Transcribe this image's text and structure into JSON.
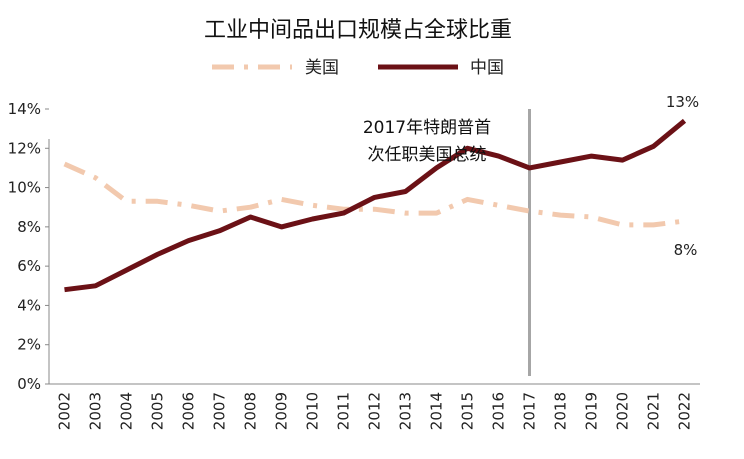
{
  "chart_data": {
    "type": "line",
    "title": "工业中间品出口规模占全球比重",
    "xlabel": "",
    "ylabel": "",
    "categories": [
      "2002",
      "2003",
      "2004",
      "2005",
      "2006",
      "2007",
      "2008",
      "2009",
      "2010",
      "2011",
      "2012",
      "2013",
      "2014",
      "2015",
      "2016",
      "2017",
      "2018",
      "2019",
      "2020",
      "2021",
      "2022"
    ],
    "ylim": [
      0,
      14
    ],
    "yticks": [
      0,
      2,
      4,
      6,
      8,
      10,
      12,
      14
    ],
    "yticklabels": [
      "0%",
      "2%",
      "4%",
      "6%",
      "8%",
      "10%",
      "12%",
      "14%"
    ],
    "series": [
      {
        "name": "美国",
        "color": "#f2c9ae",
        "style": "dashdot",
        "values": [
          11.2,
          10.5,
          9.3,
          9.3,
          9.1,
          8.8,
          9.0,
          9.4,
          9.1,
          8.9,
          8.9,
          8.7,
          8.7,
          9.4,
          9.1,
          8.8,
          8.6,
          8.5,
          8.1,
          8.1,
          8.3
        ]
      },
      {
        "name": "中国",
        "color": "#6b1116",
        "style": "solid",
        "values": [
          4.8,
          5.0,
          5.8,
          6.6,
          7.3,
          7.8,
          8.5,
          8.0,
          8.4,
          8.7,
          9.5,
          9.8,
          11.0,
          12.0,
          11.6,
          11.0,
          11.3,
          11.6,
          11.4,
          12.1,
          13.4
        ]
      }
    ],
    "vline": {
      "category": "2017",
      "color": "#a6a6a6"
    },
    "annotation": {
      "lines": [
        "2017年特朗普首",
        "次任职美国总统"
      ]
    },
    "data_labels": [
      {
        "series": "中国",
        "category": "2022",
        "text": "13%"
      },
      {
        "series": "美国",
        "category": "2022",
        "text": "8%"
      }
    ],
    "legend": {
      "placement": "top-center"
    },
    "grid": false
  }
}
